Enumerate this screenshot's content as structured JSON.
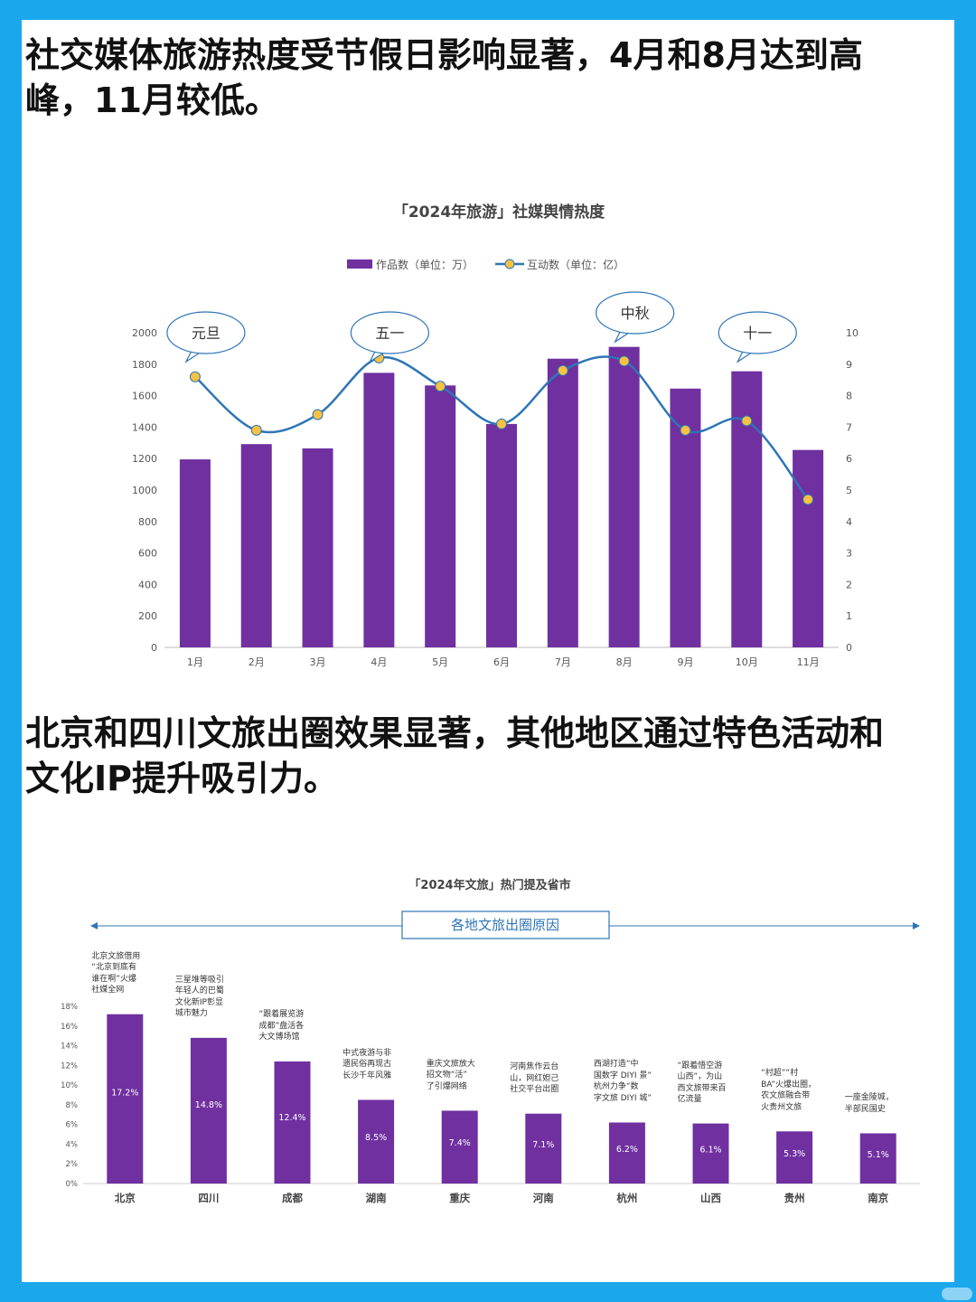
{
  "headings": {
    "h1": "社交媒体旅游热度受节假日影响显著，4月和8月达到高峰，11月较低。",
    "h2": "北京和四川文旅出圈效果显著，其他地区通过特色活动和文化IP提升吸引力。"
  },
  "colors": {
    "background": "#1aa7ec",
    "bar": "#7030a0",
    "line": "#2e75b6",
    "marker": "#f5c242",
    "box_border": "#2e75b6"
  },
  "chart_data": [
    {
      "type": "bar+line",
      "title": "「2024年旅游」社媒舆情热度",
      "categories": [
        "1月",
        "2月",
        "3月",
        "4月",
        "5月",
        "6月",
        "7月",
        "8月",
        "9月",
        "10月",
        "11月"
      ],
      "series": [
        {
          "name": "作品数（单位：万）",
          "type": "bar",
          "axis": "left",
          "values": [
            1195,
            1292,
            1265,
            1745,
            1665,
            1420,
            1835,
            1910,
            1645,
            1755,
            1255
          ]
        },
        {
          "name": "互动数（单位：亿）",
          "type": "line",
          "axis": "right",
          "values": [
            8.6,
            6.9,
            7.4,
            9.2,
            8.3,
            7.1,
            8.8,
            9.1,
            6.9,
            7.2,
            4.7
          ]
        }
      ],
      "y_left": {
        "lim": [
          0,
          2000
        ],
        "ticks": [
          "0",
          "200",
          "400",
          "600",
          "800",
          "1000",
          "1200",
          "1400",
          "1600",
          "1800",
          "2000"
        ]
      },
      "y_right": {
        "lim": [
          0,
          10
        ],
        "ticks": [
          "0",
          "1",
          "2",
          "3",
          "4",
          "5",
          "6",
          "7",
          "8",
          "9",
          "10"
        ]
      },
      "callouts": [
        "元旦",
        "五一",
        "中秋",
        "十一"
      ],
      "legend_position": "top"
    },
    {
      "type": "bar",
      "title": "「2024年文旅」热门提及省市",
      "subtitle_box": "各地文旅出圈原因",
      "categories": [
        "北京",
        "四川",
        "成都",
        "湖南",
        "重庆",
        "河南",
        "杭州",
        "山西",
        "贵州",
        "南京"
      ],
      "values": [
        17.2,
        14.8,
        12.4,
        8.5,
        7.4,
        7.1,
        6.2,
        6.1,
        5.3,
        5.1
      ],
      "data_labels": [
        "17.2%",
        "14.8%",
        "12.4%",
        "8.5%",
        "7.4%",
        "7.1%",
        "6.2%",
        "6.1%",
        "5.3%",
        "5.1%"
      ],
      "y_ticks": [
        "0%",
        "2%",
        "4%",
        "6%",
        "8%",
        "10%",
        "12%",
        "14%",
        "16%",
        "18%"
      ],
      "ylim": [
        0,
        18
      ],
      "annotations": [
        "北京文旅借用\n“北京到底有\n谁在啊”火爆\n社媒全网",
        "三星堆等吸引\n年轻人的巴蜀\n文化新IP彰显\n城市魅力",
        "“跟着展览游\n成都”盘活各\n大文博场馆",
        "中式夜游与非\n遗民俗再现古\n长沙千年风雅",
        "重庆文旅放大\n招文物“活”\n了引爆网络",
        "河南焦作云台\n山，网红妲己\n社交平台出圈",
        "西湖打造“中\n国数字 DIYI 景”\n杭州力争“数\n字文旅 DIYI 城”",
        "“跟着悟空游\n山西”，为山\n西文旅带来百\n亿流量",
        "“村超”“村\nBA”火爆出圈，\n农文旅融合带\n火贵州文旅",
        "一座金陵城，\n半部民国史"
      ]
    }
  ]
}
